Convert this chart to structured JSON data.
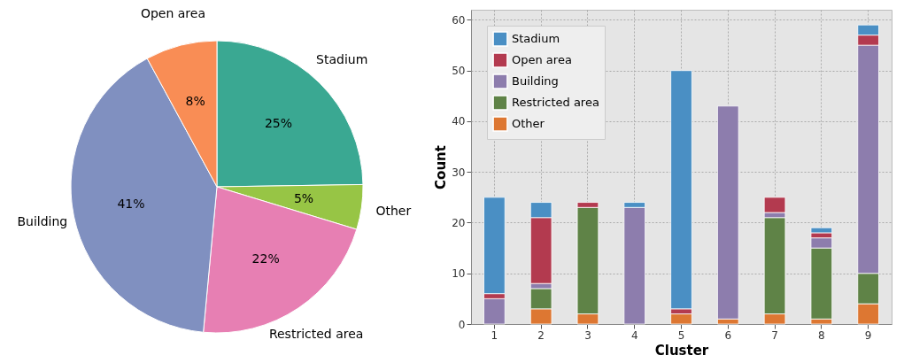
{
  "chart_data": [
    {
      "type": "pie",
      "categories": [
        "Stadium",
        "Other",
        "Restricted area",
        "Building",
        "Open area"
      ],
      "values": [
        25,
        5,
        22,
        41,
        8
      ],
      "colors": [
        "#3aa892",
        "#97c545",
        "#e77fb3",
        "#8090c0",
        "#f98d55"
      ],
      "value_labels": [
        "25%",
        "5%",
        "22%",
        "41%",
        "8%"
      ]
    },
    {
      "type": "bar",
      "stacked": true,
      "categories": [
        "1",
        "2",
        "3",
        "4",
        "5",
        "6",
        "7",
        "8",
        "9"
      ],
      "xlabel": "Cluster",
      "ylabel": "Count",
      "ylim": [
        0,
        62
      ],
      "yticks": [
        0,
        10,
        20,
        30,
        40,
        50,
        60
      ],
      "grid": true,
      "legend": "top left",
      "series": [
        {
          "name": "Other",
          "color": "#dd7732",
          "values": [
            0,
            3,
            2,
            0,
            2,
            1,
            2,
            1,
            4
          ]
        },
        {
          "name": "Restricted area",
          "color": "#5f8347",
          "values": [
            0,
            4,
            21,
            0,
            0,
            0,
            19,
            14,
            6
          ]
        },
        {
          "name": "Building",
          "color": "#8d7dad",
          "values": [
            5,
            1,
            0,
            23,
            0,
            42,
            1,
            2,
            45
          ]
        },
        {
          "name": "Open area",
          "color": "#b33a4f",
          "values": [
            1,
            13,
            1,
            0,
            1,
            0,
            3,
            1,
            2
          ]
        },
        {
          "name": "Stadium",
          "color": "#4a8fc4",
          "values": [
            19,
            3,
            0,
            1,
            47,
            0,
            0,
            1,
            2
          ]
        }
      ]
    }
  ]
}
